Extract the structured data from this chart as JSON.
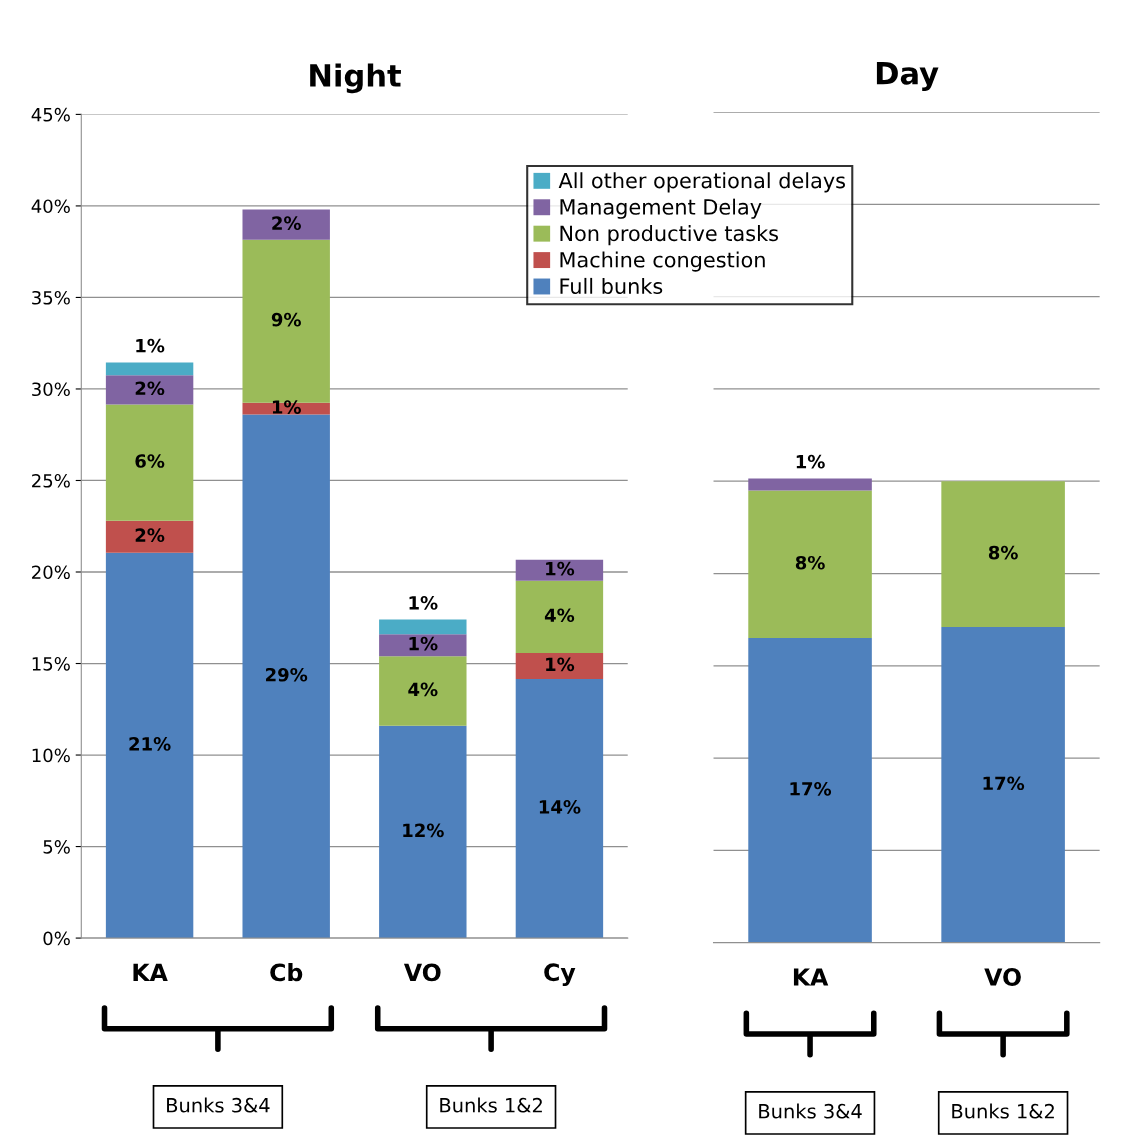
{
  "chart_data": [
    {
      "type": "bar",
      "title": "Night",
      "stacked": true,
      "categories": [
        "KA",
        "Cb",
        "VO",
        "Cy"
      ],
      "series": [
        {
          "name": "Full bunks",
          "color": "#4f81bd",
          "values": [
            21.05,
            28.6,
            11.6,
            14.16
          ],
          "value_labels": [
            "21%",
            "29%",
            "12%",
            "14%"
          ]
        },
        {
          "name": "Machine congestion",
          "color": "#c0504d",
          "values": [
            1.75,
            0.65,
            0,
            1.42
          ],
          "value_labels": [
            "2%",
            "1%",
            null,
            "1%"
          ]
        },
        {
          "name": "Non productive tasks",
          "color": "#9bbb59",
          "values": [
            6.35,
            8.9,
            3.8,
            3.94
          ],
          "value_labels": [
            "6%",
            "9%",
            "4%",
            "4%"
          ]
        },
        {
          "name": "Management Delay",
          "color": "#8064a2",
          "values": [
            1.6,
            1.65,
            1.2,
            1.15
          ],
          "value_labels": [
            "2%",
            "2%",
            "1%",
            "1%"
          ]
        },
        {
          "name": "All other operational delays",
          "color": "#4bacc6",
          "values": [
            0.7,
            0,
            0.8,
            0
          ],
          "value_labels": [
            "1%",
            null,
            "1%",
            null
          ]
        }
      ],
      "ylim": [
        0,
        45
      ],
      "yticks": [
        {
          "value": 0,
          "label": "0%"
        },
        {
          "value": 5,
          "label": "5%"
        },
        {
          "value": 10,
          "label": "10%"
        },
        {
          "value": 15,
          "label": "15%"
        },
        {
          "value": 20,
          "label": "20%"
        },
        {
          "value": 25,
          "label": "25%"
        },
        {
          "value": 30,
          "label": "30%"
        },
        {
          "value": 35,
          "label": "35%"
        },
        {
          "value": 40,
          "label": "40%"
        },
        {
          "value": 45,
          "label": "45%"
        }
      ],
      "grid": "y",
      "legend": "top right",
      "annotations": [
        "Bunks 3&4",
        "Bunks 1&2"
      ]
    },
    {
      "type": "bar",
      "title": "Day",
      "stacked": true,
      "categories": [
        "KA",
        "VO"
      ],
      "series": [
        {
          "color": "#4f81bd",
          "values": [
            16.5,
            17.1
          ],
          "value_labels": [
            "17%",
            "17%"
          ]
        },
        {
          "color": "#9bbb59",
          "values": [
            8.0,
            7.9
          ],
          "value_labels": [
            "8%",
            "8%"
          ]
        },
        {
          "color": "#8064a2",
          "values": [
            0.65,
            0
          ],
          "value_labels": [
            "1%",
            null
          ]
        }
      ],
      "ylim": [
        0,
        45
      ],
      "yticks": [
        {
          "value": 0,
          "label": null
        },
        {
          "value": 5,
          "label": null
        },
        {
          "value": 10,
          "label": null
        },
        {
          "value": 15,
          "label": null
        },
        {
          "value": 20,
          "label": null
        },
        {
          "value": 25,
          "label": null
        },
        {
          "value": 30,
          "label": null
        },
        {
          "value": 35,
          "label": null
        },
        {
          "value": 40,
          "label": null
        },
        {
          "value": 45,
          "label": null
        }
      ],
      "grid": "y",
      "tick_labels": "x",
      "annotations": [
        "Bunks 3&4",
        "Bunks 1&2"
      ]
    }
  ]
}
